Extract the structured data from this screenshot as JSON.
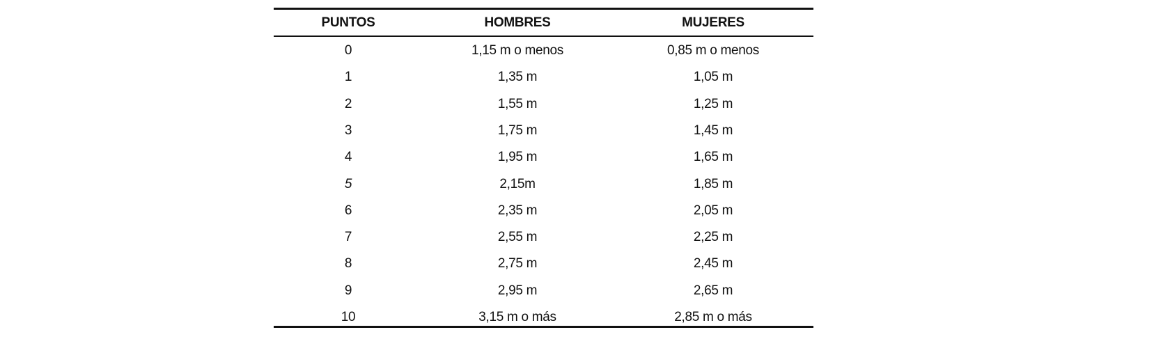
{
  "table": {
    "headers": [
      "PUNTOS",
      "HOMBRES",
      "MUJERES"
    ],
    "rows": [
      [
        "0",
        "1,15 m o menos",
        "0,85 m o menos"
      ],
      [
        "1",
        "1,35 m",
        "1,05 m"
      ],
      [
        "2",
        "1,55 m",
        "1,25 m"
      ],
      [
        "3",
        "1,75 m",
        "1,45 m"
      ],
      [
        "4",
        "1,95 m",
        "1,65 m"
      ],
      [
        "5",
        "2,15m",
        "1,85 m"
      ],
      [
        "6",
        "2,35 m",
        "2,05 m"
      ],
      [
        "7",
        "2,55 m",
        "2,25 m"
      ],
      [
        "8",
        "2,75 m",
        "2,45 m"
      ],
      [
        "9",
        "2,95 m",
        "2,65 m"
      ],
      [
        "10",
        "3,15 m o más",
        "2,85 m o más"
      ]
    ]
  }
}
